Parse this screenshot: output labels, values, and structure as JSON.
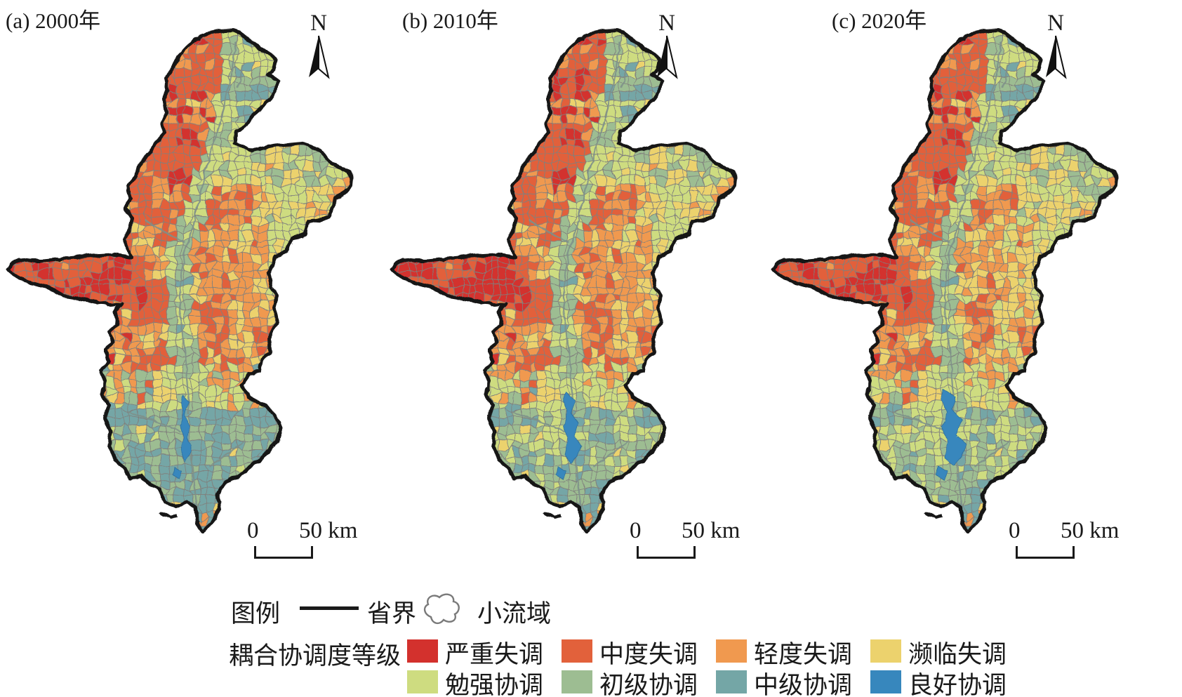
{
  "figure": {
    "panels": [
      {
        "id": "a",
        "title": "(a) 2000年",
        "year": 2000
      },
      {
        "id": "b",
        "title": "(b) 2010年",
        "year": 2010
      },
      {
        "id": "c",
        "title": "(c) 2020年",
        "year": 2020
      }
    ],
    "north_label": "N",
    "scalebar": {
      "zero": "0",
      "label": "50 km"
    }
  },
  "legend": {
    "title": "图例",
    "boundary_label": "省界",
    "watershed_label": "小流域",
    "grade_title": "耦合协调度等级",
    "classes": [
      {
        "label": "严重失调",
        "color": "#d3312d"
      },
      {
        "label": "中度失调",
        "color": "#e2613b"
      },
      {
        "label": "轻度失调",
        "color": "#f0994f"
      },
      {
        "label": "濒临失调",
        "color": "#ecd26d"
      },
      {
        "label": "勉强协调",
        "color": "#cedc80"
      },
      {
        "label": "初级协调",
        "color": "#9dbd92"
      },
      {
        "label": "中级协调",
        "color": "#74a6a6"
      },
      {
        "label": "良好协调",
        "color": "#3787bd"
      }
    ]
  },
  "map_meta": {
    "outline_color": "#141414",
    "cell_stroke": "#80807d",
    "river_color": "#7e9089"
  }
}
